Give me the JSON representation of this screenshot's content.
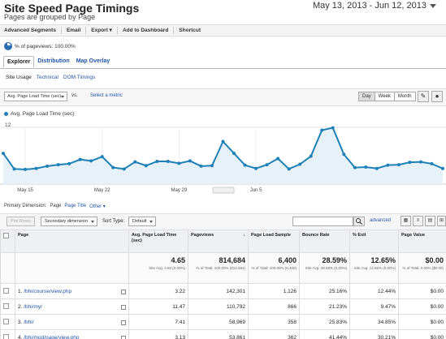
{
  "header": {
    "title": "Site Speed Page Timings",
    "subtitle": "Pages are grouped by Page",
    "date_range": "May 13, 2013 - Jun 12, 2013"
  },
  "toolbar": {
    "advanced_segments": "Advanced Segments",
    "email": "Email",
    "export": "Export",
    "add_to_dashboard": "Add to Dashboard",
    "shortcut": "Shortcut"
  },
  "sample": {
    "text": "% of pageviews: 100.00%"
  },
  "tabs": [
    "Explorer",
    "Distribution",
    "Map Overlay"
  ],
  "subtabs": [
    "Site Usage",
    "Technical",
    "DOM Timings"
  ],
  "metric": {
    "selected": "Avg. Page Load Time (sec)",
    "vs": "vs.",
    "select_metric": "Select a metric",
    "periods": [
      "Day",
      "Week",
      "Month"
    ]
  },
  "chart_data": {
    "type": "area",
    "series": [
      {
        "name": "Avg. Page Load Time (sec)",
        "values": [
          6.5,
          3.2,
          3.1,
          3.3,
          3.8,
          4.1,
          4.3,
          5.2,
          4.9,
          5.8,
          3.5,
          3.2,
          4.7,
          3.9,
          4.8,
          4.8,
          4.4,
          4.9,
          3.8,
          3.9,
          9.0,
          6.5,
          4.0,
          3.3,
          4.1,
          5.4,
          3.2,
          4.2,
          5.9,
          11.4,
          11.9,
          6.3,
          3.5,
          3.6,
          3.3,
          4.0,
          4.1,
          4.6,
          4.7,
          4.3,
          3.3
        ]
      }
    ],
    "ylim": [
      0,
      12
    ],
    "y_tick_labels": [
      "12"
    ],
    "x_tick_labels": [
      "May 15",
      "May 22",
      "May 29",
      "Jun 5"
    ],
    "x_tick_index": [
      2,
      9,
      16,
      23
    ],
    "grid": true,
    "color": "#1e80b6"
  },
  "primary_dimension": {
    "label": "Primary Dimension:",
    "page": "Page",
    "page_title": "Page Title",
    "other": "Other"
  },
  "controls": {
    "plot_rows": "Plot Rows",
    "secondary_dimension": "Secondary dimension",
    "sort_type_label": "Sort Type:",
    "sort_type": "Default",
    "advanced": "advanced"
  },
  "table": {
    "headers": {
      "page": "Page",
      "avg_load": "Avg. Page Load Time (sec)",
      "pageviews": "Pageviews",
      "load_sample": "Page Load Sample",
      "bounce": "Bounce Rate",
      "exit": "% Exit",
      "value": "Page Value"
    },
    "totals": {
      "avg_load": "4.65",
      "avg_load_sub": "Site Avg: 4.65 (0.00%)",
      "pageviews": "814,684",
      "pageviews_sub": "% of Total: 100.00% (814,684)",
      "load_sample": "6,400",
      "load_sample_sub": "% of Total: 100.00% (6,400)",
      "bounce": "28.59%",
      "bounce_sub": "Site Avg: 28.59% (0.00%)",
      "exit": "12.65%",
      "exit_sub": "Site Avg: 12.65% (0.00%)",
      "value": "$0.00",
      "value_sub": "% of Total: 0.00% ($0.00)"
    },
    "rows": [
      {
        "index": "1.",
        "page": "/bhi/course/view.php",
        "avg_load": "3.22",
        "pageviews": "142,301",
        "load_sample": "1,126",
        "bounce": "25.16%",
        "exit": "12.44%",
        "value": "$0.00"
      },
      {
        "index": "2.",
        "page": "/bhi/my/",
        "avg_load": "11.47",
        "pageviews": "110,792",
        "load_sample": "866",
        "bounce": "21.23%",
        "exit": "9.47%",
        "value": "$0.00"
      },
      {
        "index": "3.",
        "page": "/bhi/",
        "avg_load": "7.41",
        "pageviews": "58,969",
        "load_sample": "358",
        "bounce": "25.83%",
        "exit": "34.85%",
        "value": "$0.00"
      },
      {
        "index": "4.",
        "page": "/bhi/mod/page/view.php",
        "avg_load": "3.13",
        "pageviews": "53,861",
        "load_sample": "362",
        "bounce": "41.44%",
        "exit": "30.21%",
        "value": "$0.00"
      }
    ]
  }
}
